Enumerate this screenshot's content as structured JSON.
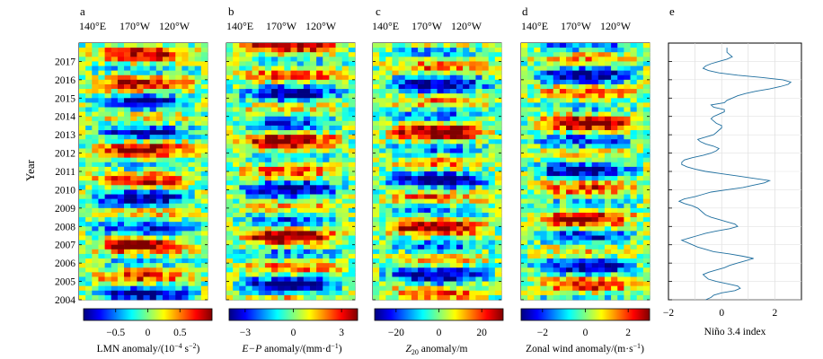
{
  "figure": {
    "ylabel": "Year",
    "year_ticks": [
      "2004",
      "2005",
      "2006",
      "2007",
      "2008",
      "2009",
      "2010",
      "2011",
      "2012",
      "2013",
      "2014",
      "2015",
      "2016",
      "2017"
    ],
    "lon_labels": [
      "140°E",
      "170°W",
      "120°W"
    ],
    "colormap": [
      "#00007f",
      "#0000ff",
      "#007fff",
      "#00ffff",
      "#7fff7f",
      "#ffff00",
      "#ff7f00",
      "#ff0000",
      "#7f0000"
    ]
  },
  "panels": [
    {
      "label": "a",
      "colorbar": {
        "title_main": "LMN anomaly/(10",
        "title_sup1": "−4",
        "title_mid": " s",
        "title_sup2": "−2",
        "title_end": ")",
        "ticks": [
          "−0.5",
          "0",
          "0.5"
        ],
        "range": [
          -1.0,
          1.0
        ],
        "tick_values": [
          -0.5,
          0,
          0.5
        ]
      }
    },
    {
      "label": "b",
      "colorbar": {
        "title_main": "E−P",
        "title_rest": " anomaly/(mm·d",
        "title_sup": "−1",
        "title_end": ")",
        "ticks": [
          "−3",
          "0",
          "3"
        ],
        "range": [
          -4.0,
          4.0
        ],
        "tick_values": [
          -3,
          0,
          3
        ]
      }
    },
    {
      "label": "c",
      "colorbar": {
        "title_main": "Z",
        "title_sub": "20",
        "title_rest": " anomaly/m",
        "ticks": [
          "−20",
          "0",
          "20"
        ],
        "range": [
          -30,
          30
        ],
        "tick_values": [
          -20,
          0,
          20
        ]
      }
    },
    {
      "label": "d",
      "colorbar": {
        "title_main": "Zonal wind anomaly/(m·s",
        "title_sup": "−1",
        "title_end": ")",
        "ticks": [
          "−2",
          "0",
          "2"
        ],
        "range": [
          -3,
          3
        ],
        "tick_values": [
          -2,
          0,
          2
        ]
      }
    }
  ],
  "chart_data": {
    "label": "e",
    "type": "line",
    "xlabel": "Niño 3.4 index",
    "xticks": [
      "−2",
      "0",
      "2"
    ],
    "xlim": [
      -2,
      3
    ],
    "ylim": [
      2004,
      2018
    ],
    "color": "#1f6f9f",
    "series": [
      {
        "x": [
          -0.6,
          -0.4,
          -0.3,
          0.0,
          0.5,
          0.7,
          0.6,
          0.2,
          -0.2,
          -0.5,
          -0.6,
          -0.7,
          -0.5,
          -0.2,
          0.1,
          0.3,
          0.6,
          0.9,
          1.2,
          0.8,
          0.3,
          -0.3,
          -0.6,
          -0.9,
          -1.1,
          -1.3,
          -1.5,
          -1.2,
          -0.9,
          -0.6,
          -0.2,
          0.3,
          0.6,
          0.5,
          0.2,
          -0.1,
          -0.4,
          -0.6,
          -0.7,
          -0.8,
          -0.9,
          -1.1,
          -1.4,
          -1.6,
          -1.4,
          -1.0,
          -0.7,
          -0.4,
          0.2,
          0.8,
          1.2,
          1.6,
          1.8,
          1.2,
          0.6,
          0.0,
          -0.6,
          -1.0,
          -1.3,
          -1.5,
          -1.5,
          -1.4,
          -1.1,
          -0.7,
          -0.4,
          -0.2,
          -0.1,
          -0.3,
          -0.6,
          -0.8,
          -0.9,
          -0.6,
          -0.3,
          -0.2,
          -0.1,
          0.0,
          0.0,
          -0.2,
          -0.3,
          -0.4,
          -0.3,
          -0.1,
          0.1,
          0.1,
          -0.3,
          -0.4,
          0.1,
          0.2,
          0.4,
          0.6,
          0.9,
          1.3,
          1.8,
          2.2,
          2.5,
          2.6,
          2.3,
          1.5,
          0.6,
          -0.1,
          -0.5,
          -0.7,
          -0.6,
          -0.4,
          -0.1,
          0.2,
          0.4,
          0.3,
          0.2,
          0.2,
          0.2
        ],
        "y": [
          2004.0,
          2004.125,
          2004.25,
          2004.375,
          2004.5,
          2004.625,
          2004.75,
          2004.875,
          2005.0,
          2005.125,
          2005.25,
          2005.375,
          2005.5,
          2005.625,
          2005.75,
          2005.875,
          2006.0,
          2006.125,
          2006.25,
          2006.375,
          2006.5,
          2006.625,
          2006.75,
          2006.875,
          2007.0,
          2007.125,
          2007.25,
          2007.375,
          2007.5,
          2007.625,
          2007.75,
          2007.875,
          2008.0,
          2008.125,
          2008.25,
          2008.375,
          2008.5,
          2008.625,
          2008.75,
          2008.875,
          2009.0,
          2009.125,
          2009.25,
          2009.375,
          2009.5,
          2009.625,
          2009.75,
          2009.875,
          2010.0,
          2010.125,
          2010.25,
          2010.375,
          2010.5,
          2010.625,
          2010.75,
          2010.875,
          2011.0,
          2011.125,
          2011.25,
          2011.375,
          2011.5,
          2011.625,
          2011.75,
          2011.875,
          2012.0,
          2012.125,
          2012.25,
          2012.375,
          2012.5,
          2012.625,
          2012.75,
          2012.875,
          2013.0,
          2013.125,
          2013.25,
          2013.375,
          2013.5,
          2013.625,
          2013.75,
          2013.875,
          2014.0,
          2014.125,
          2014.25,
          2014.375,
          2014.5,
          2014.625,
          2014.75,
          2014.875,
          2015.0,
          2015.125,
          2015.25,
          2015.375,
          2015.5,
          2015.625,
          2015.75,
          2015.875,
          2016.0,
          2016.125,
          2016.25,
          2016.375,
          2016.5,
          2016.625,
          2016.75,
          2016.875,
          2017.0,
          2017.125,
          2017.25,
          2017.375,
          2017.5,
          2017.625,
          2017.75
        ]
      }
    ]
  }
}
